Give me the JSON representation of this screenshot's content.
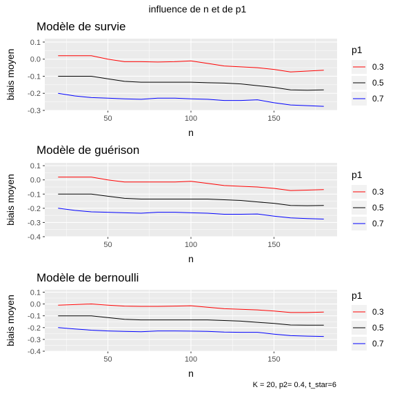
{
  "title": "influence de n et de p1",
  "caption": "K = 20,  p2= 0.4, t_star=6",
  "legend": {
    "title": "p1",
    "entries": [
      {
        "label": "0.3",
        "color": "#ff0000"
      },
      {
        "label": "0.5",
        "color": "#000000"
      },
      {
        "label": "0.7",
        "color": "#0000ff"
      }
    ]
  },
  "colors": {
    "panel_background": "#ebebeb",
    "grid": "#ffffff",
    "tick_text": "#4d4d4d"
  },
  "chart_data": [
    {
      "type": "line",
      "title": "Modèle de survie",
      "xlabel": "n",
      "ylabel": "biais moyen",
      "xlim": [
        12,
        188
      ],
      "ylim": [
        -0.3,
        0.12
      ],
      "xticks": [
        50,
        100,
        150
      ],
      "yticks": [
        0.1,
        0.0,
        -0.1,
        -0.2,
        -0.3
      ],
      "ytick_labels": [
        "0.1",
        "0.0",
        "-0.1",
        "-0.2",
        "-0.3"
      ],
      "x": [
        20,
        30,
        40,
        50,
        60,
        70,
        80,
        90,
        100,
        110,
        120,
        130,
        140,
        150,
        160,
        170,
        180
      ],
      "series": [
        {
          "name": "0.3",
          "color": "#ff0000",
          "values": [
            0.02,
            0.02,
            0.02,
            0.0,
            -0.015,
            -0.015,
            -0.017,
            -0.015,
            -0.01,
            -0.025,
            -0.04,
            -0.045,
            -0.05,
            -0.06,
            -0.075,
            -0.07,
            -0.065
          ]
        },
        {
          "name": "0.5",
          "color": "#000000",
          "values": [
            -0.1,
            -0.1,
            -0.1,
            -0.115,
            -0.13,
            -0.135,
            -0.135,
            -0.135,
            -0.135,
            -0.138,
            -0.14,
            -0.145,
            -0.155,
            -0.165,
            -0.18,
            -0.182,
            -0.18
          ]
        },
        {
          "name": "0.7",
          "color": "#0000ff",
          "values": [
            -0.2,
            -0.215,
            -0.225,
            -0.228,
            -0.232,
            -0.235,
            -0.228,
            -0.228,
            -0.232,
            -0.235,
            -0.242,
            -0.242,
            -0.238,
            -0.255,
            -0.268,
            -0.272,
            -0.276
          ]
        }
      ]
    },
    {
      "type": "line",
      "title": "Modèle de guérison",
      "xlabel": "n",
      "ylabel": "biais moyen",
      "xlim": [
        12,
        188
      ],
      "ylim": [
        -0.4,
        0.12
      ],
      "xticks": [
        50,
        100,
        150
      ],
      "yticks": [
        0.1,
        0.0,
        -0.1,
        -0.2,
        -0.3,
        -0.4
      ],
      "ytick_labels": [
        "0.1",
        "0.0",
        "-0.1",
        "-0.2",
        "-0.3",
        "-0.4"
      ],
      "x": [
        20,
        30,
        40,
        50,
        60,
        70,
        80,
        90,
        100,
        110,
        120,
        130,
        140,
        150,
        160,
        170,
        180
      ],
      "series": [
        {
          "name": "0.3",
          "color": "#ff0000",
          "values": [
            0.02,
            0.02,
            0.02,
            0.0,
            -0.015,
            -0.015,
            -0.015,
            -0.015,
            -0.01,
            -0.025,
            -0.04,
            -0.045,
            -0.05,
            -0.06,
            -0.075,
            -0.072,
            -0.068
          ]
        },
        {
          "name": "0.5",
          "color": "#000000",
          "values": [
            -0.1,
            -0.1,
            -0.1,
            -0.115,
            -0.13,
            -0.135,
            -0.135,
            -0.135,
            -0.135,
            -0.135,
            -0.14,
            -0.145,
            -0.155,
            -0.165,
            -0.18,
            -0.182,
            -0.18
          ]
        },
        {
          "name": "0.7",
          "color": "#0000ff",
          "values": [
            -0.2,
            -0.215,
            -0.225,
            -0.228,
            -0.232,
            -0.235,
            -0.228,
            -0.228,
            -0.232,
            -0.235,
            -0.242,
            -0.242,
            -0.24,
            -0.255,
            -0.268,
            -0.272,
            -0.276
          ]
        }
      ]
    },
    {
      "type": "line",
      "title": "Modèle de bernoulli",
      "xlabel": "n",
      "ylabel": "biais moyen",
      "xlim": [
        12,
        188
      ],
      "ylim": [
        -0.4,
        0.12
      ],
      "xticks": [
        50,
        100,
        150
      ],
      "yticks": [
        0.1,
        0.0,
        -0.1,
        -0.2,
        -0.3,
        -0.4
      ],
      "ytick_labels": [
        "0.1",
        "0.0",
        "-0.1",
        "-0.2",
        "-0.3",
        "-0.4"
      ],
      "x": [
        20,
        30,
        40,
        50,
        60,
        70,
        80,
        90,
        100,
        110,
        120,
        130,
        140,
        150,
        160,
        170,
        180
      ],
      "series": [
        {
          "name": "0.3",
          "color": "#ff0000",
          "values": [
            -0.01,
            -0.005,
            0.0,
            -0.01,
            -0.018,
            -0.02,
            -0.02,
            -0.018,
            -0.015,
            -0.028,
            -0.04,
            -0.045,
            -0.05,
            -0.06,
            -0.072,
            -0.072,
            -0.068
          ]
        },
        {
          "name": "0.5",
          "color": "#000000",
          "values": [
            -0.1,
            -0.1,
            -0.1,
            -0.115,
            -0.13,
            -0.135,
            -0.135,
            -0.135,
            -0.135,
            -0.135,
            -0.14,
            -0.145,
            -0.155,
            -0.165,
            -0.178,
            -0.18,
            -0.18
          ]
        },
        {
          "name": "0.7",
          "color": "#0000ff",
          "values": [
            -0.2,
            -0.212,
            -0.222,
            -0.228,
            -0.232,
            -0.235,
            -0.228,
            -0.228,
            -0.23,
            -0.232,
            -0.238,
            -0.24,
            -0.24,
            -0.255,
            -0.268,
            -0.272,
            -0.275
          ]
        }
      ]
    }
  ]
}
